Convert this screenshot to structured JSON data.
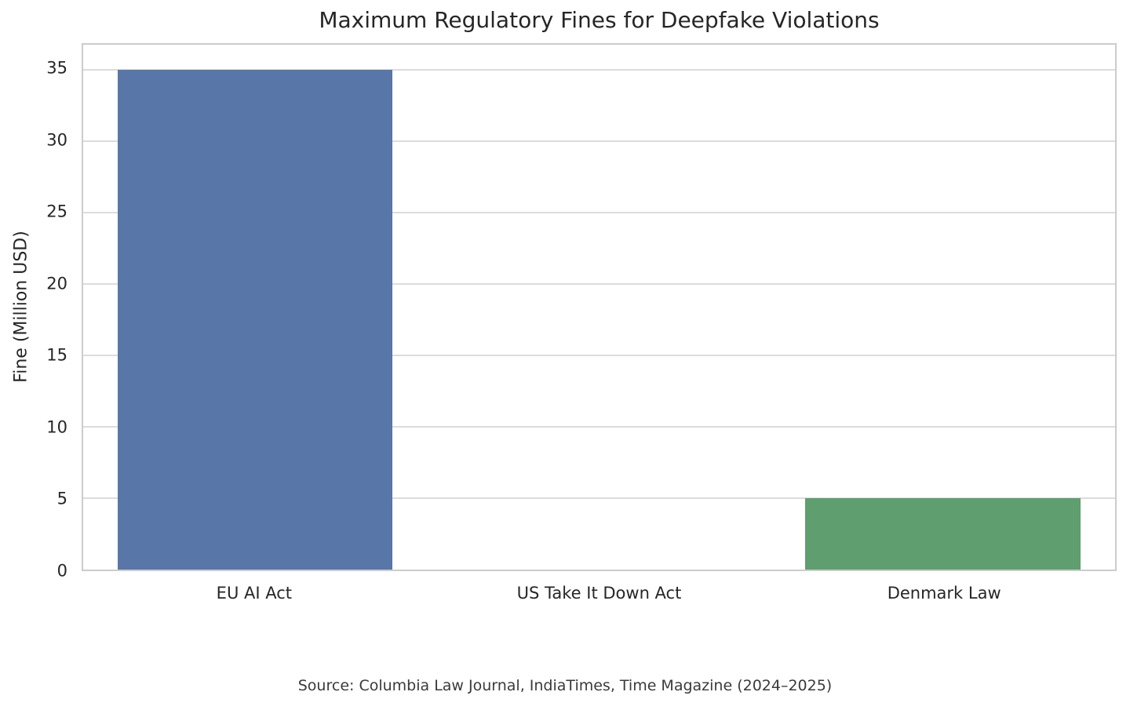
{
  "chart_data": {
    "type": "bar",
    "title": "Maximum Regulatory Fines for Deepfake Violations",
    "categories": [
      "EU AI Act",
      "US Take It Down Act",
      "Denmark Law"
    ],
    "values": [
      35,
      0,
      5
    ],
    "bar_colors": [
      "#5876a8",
      null,
      "#5f9e6e"
    ],
    "xlabel": "",
    "ylabel": "Fine (Million USD)",
    "ylim": [
      0,
      36.75
    ],
    "yticks": [
      0,
      5,
      10,
      15,
      20,
      25,
      30,
      35
    ],
    "grid": "horizontal",
    "grid_color": "#dcdcdc",
    "spine_color": "#cccccc",
    "text_color": "#262626",
    "bar_width_frac": 0.8,
    "legend": null,
    "source_note": "Source: Columbia Law Journal, IndiaTimes, Time Magazine (2024–2025)"
  }
}
